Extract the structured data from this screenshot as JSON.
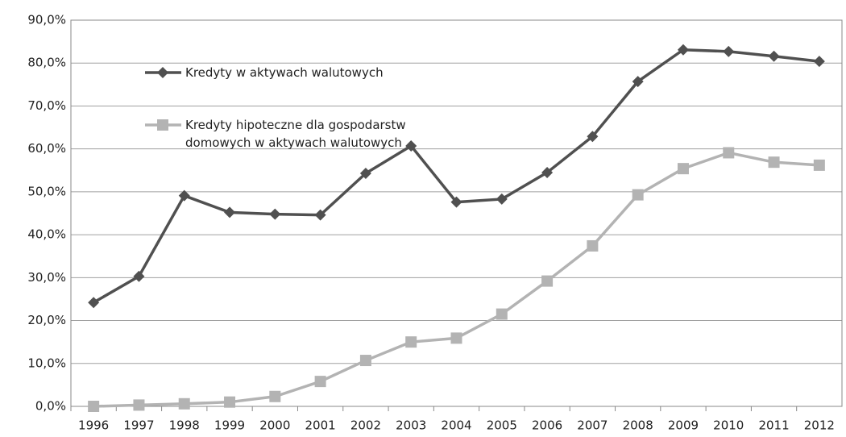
{
  "chart_data": {
    "type": "line",
    "categories": [
      "1996",
      "1997",
      "1998",
      "1999",
      "2000",
      "2001",
      "2002",
      "2003",
      "2004",
      "2005",
      "2006",
      "2007",
      "2008",
      "2009",
      "2010",
      "2011",
      "2012"
    ],
    "series": [
      {
        "name": "Kredyty w aktywach walutowych",
        "color": "#505050",
        "marker": "diamond",
        "values": [
          24.2,
          30.3,
          49.1,
          45.2,
          44.8,
          44.6,
          54.3,
          60.7,
          47.6,
          48.3,
          54.5,
          62.9,
          75.7,
          83.1,
          82.7,
          81.6,
          80.4
        ]
      },
      {
        "name": "Kredyty hipoteczne dla gospodarstw domowych w aktywach walutowych",
        "color": "#b3b3b3",
        "marker": "square",
        "values": [
          0,
          0.3,
          0.6,
          1.0,
          2.3,
          5.8,
          10.7,
          15.0,
          15.9,
          21.5,
          29.2,
          37.4,
          49.3,
          55.4,
          59.1,
          56.9,
          56.2
        ]
      }
    ],
    "ylim": [
      0,
      90
    ],
    "yticks": [
      {
        "value": 0,
        "label": "0,0%"
      },
      {
        "value": 10,
        "label": "10,0%"
      },
      {
        "value": 20,
        "label": "20,0%"
      },
      {
        "value": 30,
        "label": "30,0%"
      },
      {
        "value": 40,
        "label": "40,0%"
      },
      {
        "value": 50,
        "label": "50,0%"
      },
      {
        "value": 60,
        "label": "60,0%"
      },
      {
        "value": 70,
        "label": "70,0%"
      },
      {
        "value": 80,
        "label": "80,0%"
      },
      {
        "value": 90,
        "label": "90,0%"
      }
    ],
    "grid": true,
    "legend": "upper left"
  }
}
